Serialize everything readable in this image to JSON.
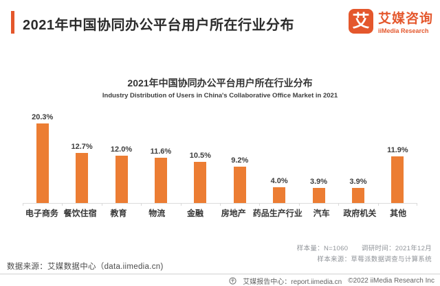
{
  "header": {
    "title": "2021年中国协同办公平台用户所在行业分布"
  },
  "logo": {
    "mark_glyph": "艾",
    "name_cn": "艾媒咨询",
    "name_en": "iiMedia Research"
  },
  "chart_data": {
    "type": "bar",
    "title": "2021年中国协同办公平台用户所在行业分布",
    "subtitle": "Industry Distribution of Users in China's Collaborative Office Market in 2021",
    "categories": [
      "电子商务",
      "餐饮住宿",
      "教育",
      "物流",
      "金融",
      "房地产",
      "药品生产行业",
      "汽车",
      "政府机关",
      "其他"
    ],
    "values": [
      20.3,
      12.7,
      12.0,
      11.6,
      10.5,
      9.2,
      4.0,
      3.9,
      3.9,
      11.9
    ],
    "labels": [
      "20.3%",
      "12.7%",
      "12.0%",
      "11.6%",
      "10.5%",
      "9.2%",
      "4.0%",
      "3.9%",
      "3.9%",
      "11.9%"
    ],
    "unit": "%",
    "xlabel": "",
    "ylabel": "",
    "ylim": [
      0,
      21
    ],
    "grid": false,
    "legend": false,
    "bar_color": "#ec7d33"
  },
  "footnotes": {
    "data_source": "数据来源：艾媒数据中心（data.iimedia.cn)",
    "sample_line1": "样本量：N=1060　　调研时间：2021年12月",
    "sample_line2": "样本来源：草莓派数据调查与计算系统"
  },
  "footer": {
    "report_center": "艾媒报告中心：report.iimedia.cn",
    "copyright": "©2022  iiMedia Research Inc"
  },
  "colors": {
    "accent": "#e4572c",
    "bar": "#ec7d33",
    "axis_line": "#dcdcdc"
  }
}
